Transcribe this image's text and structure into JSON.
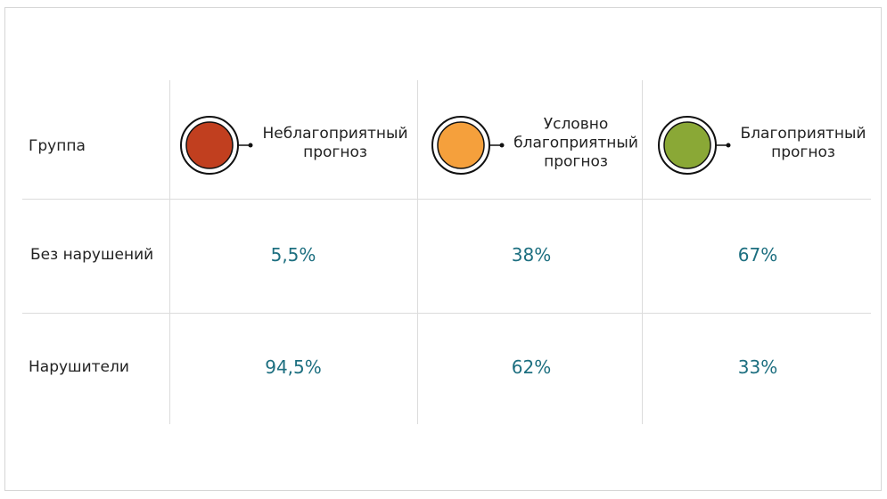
{
  "table": {
    "header": {
      "label": "Группа",
      "columns": [
        {
          "label": "Неблагоприятный\nпрогноз",
          "color": "#c13f1f"
        },
        {
          "label": "Условно\nблагоприятный\nпрогноз",
          "color": "#f5a03c"
        },
        {
          "label": "Благоприятный\nпрогноз",
          "color": "#8aa836"
        }
      ]
    },
    "rows": [
      {
        "label": "Без нарушений",
        "cells": [
          "5,5%",
          "38%",
          "67%"
        ]
      },
      {
        "label": "Нарушители",
        "cells": [
          "94,5%",
          "62%",
          "33%"
        ]
      }
    ]
  }
}
